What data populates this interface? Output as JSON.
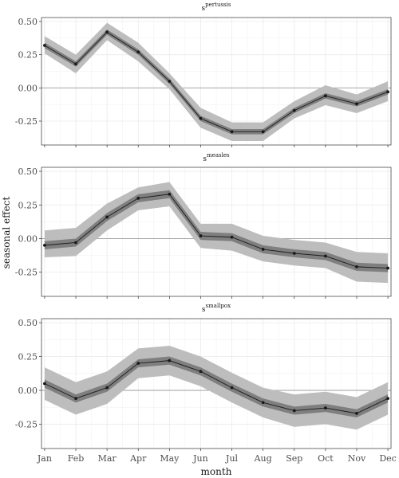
{
  "chart_data": {
    "type": "line",
    "xlabel": "month",
    "ylabel": "seasonal effect",
    "categories": [
      "Jan",
      "Feb",
      "Mar",
      "Apr",
      "May",
      "Jun",
      "Jul",
      "Aug",
      "Sep",
      "Oct",
      "Nov",
      "Dec"
    ],
    "y_ticks": [
      -0.25,
      0.0,
      0.25,
      0.5
    ],
    "y_tick_labels": [
      "-0.25",
      "0.00",
      "0.25",
      "0.50"
    ],
    "grid": true,
    "reference_line": 0,
    "colors": {
      "line": "#1a1a1a",
      "outer_band": "#bdbdbd",
      "inner_band": "#7f7f7f",
      "grid": "#ebebeb",
      "zero_line": "#9e9e9e",
      "border": "#333333"
    },
    "panels": [
      {
        "title_base": "s",
        "title_sup": "pertussis",
        "ylim": [
          -0.43,
          0.53
        ],
        "values": [
          0.32,
          0.18,
          0.42,
          0.27,
          0.05,
          -0.23,
          -0.33,
          -0.33,
          -0.17,
          -0.06,
          -0.12,
          -0.03
        ],
        "outer_lower": [
          0.26,
          0.11,
          0.36,
          0.2,
          -0.01,
          -0.3,
          -0.4,
          -0.4,
          -0.23,
          -0.13,
          -0.19,
          -0.1
        ],
        "outer_upper": [
          0.39,
          0.25,
          0.49,
          0.34,
          0.11,
          -0.15,
          -0.26,
          -0.26,
          -0.1,
          0.02,
          -0.05,
          0.05
        ],
        "inner_lower": [
          0.3,
          0.16,
          0.4,
          0.25,
          0.03,
          -0.25,
          -0.35,
          -0.35,
          -0.19,
          -0.08,
          -0.14,
          -0.05
        ],
        "inner_upper": [
          0.34,
          0.2,
          0.44,
          0.29,
          0.07,
          -0.21,
          -0.31,
          -0.31,
          -0.15,
          -0.04,
          -0.1,
          -0.01
        ]
      },
      {
        "title_base": "s",
        "title_sup": "measles",
        "ylim": [
          -0.43,
          0.53
        ],
        "values": [
          -0.05,
          -0.03,
          0.16,
          0.3,
          0.33,
          0.02,
          0.01,
          -0.08,
          -0.11,
          -0.13,
          -0.21,
          -0.22
        ],
        "outer_lower": [
          -0.14,
          -0.13,
          0.06,
          0.21,
          0.24,
          -0.07,
          -0.09,
          -0.17,
          -0.2,
          -0.22,
          -0.32,
          -0.33
        ],
        "outer_upper": [
          0.06,
          0.08,
          0.26,
          0.38,
          0.42,
          0.11,
          0.11,
          0.02,
          -0.01,
          -0.03,
          -0.1,
          -0.11
        ],
        "inner_lower": [
          -0.08,
          -0.06,
          0.13,
          0.27,
          0.3,
          -0.01,
          -0.02,
          -0.11,
          -0.14,
          -0.16,
          -0.24,
          -0.25
        ],
        "inner_upper": [
          -0.02,
          0.0,
          0.19,
          0.33,
          0.36,
          0.05,
          0.04,
          -0.05,
          -0.08,
          -0.1,
          -0.18,
          -0.19
        ]
      },
      {
        "title_base": "s",
        "title_sup": "smallpox",
        "ylim": [
          -0.43,
          0.53
        ],
        "values": [
          0.05,
          -0.06,
          0.02,
          0.2,
          0.22,
          0.14,
          0.02,
          -0.09,
          -0.15,
          -0.13,
          -0.17,
          -0.06
        ],
        "outer_lower": [
          -0.07,
          -0.18,
          -0.1,
          0.09,
          0.11,
          0.03,
          -0.09,
          -0.2,
          -0.27,
          -0.25,
          -0.29,
          -0.18
        ],
        "outer_upper": [
          0.17,
          0.06,
          0.14,
          0.31,
          0.33,
          0.25,
          0.13,
          0.02,
          -0.03,
          -0.01,
          -0.05,
          0.06
        ],
        "inner_lower": [
          0.02,
          -0.09,
          -0.01,
          0.17,
          0.19,
          0.11,
          -0.01,
          -0.12,
          -0.18,
          -0.16,
          -0.2,
          -0.09
        ],
        "inner_upper": [
          0.08,
          -0.03,
          0.05,
          0.23,
          0.25,
          0.17,
          0.05,
          -0.06,
          -0.12,
          -0.1,
          -0.14,
          -0.03
        ]
      }
    ]
  }
}
